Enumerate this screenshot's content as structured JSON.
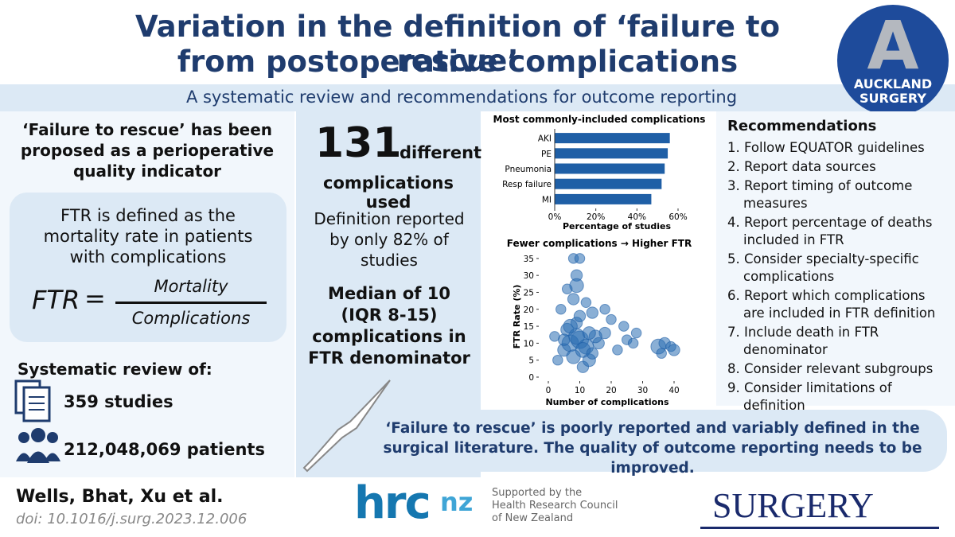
{
  "header": {
    "title_line1": "Variation in the definition of ‘failure to rescue’",
    "title_line2": "from postoperative complications",
    "subtitle": "A systematic review and recommendations for outcome reporting",
    "logo_letter": "A",
    "logo_line1": "AUCKLAND",
    "logo_line2": "SURGERY"
  },
  "left": {
    "heading": "‘Failure to rescue’ has been proposed as a perioperative quality indicator",
    "definition": "FTR is defined as the mortality rate in patients with complications",
    "formula_lhs": "FTR",
    "formula_eq": "=",
    "formula_numerator": "Mortality",
    "formula_denominator": "Complications",
    "review_heading": "Systematic review of:",
    "studies": "359 studies",
    "patients": "212,048,069 patients"
  },
  "middle": {
    "count": "131",
    "count_word": "different",
    "count_line2": "complications used",
    "definition_note": "Definition reported by only 82% of studies",
    "median": "Median of 10 (IQR 8-15) complications in FTR denominator"
  },
  "recommendations": {
    "heading": "Recommendations",
    "items": [
      "1. Follow EQUATOR guidelines",
      "2. Report data sources",
      "3. Report timing of outcome measures",
      "4. Report percentage of deaths included in FTR",
      "5. Consider specialty-specific complications",
      "6. Report which complications are included in FTR definition",
      "7. Include death in FTR denominator",
      "8. Consider relevant subgroups",
      "9. Consider limitations of definition"
    ]
  },
  "conclusion": "‘Failure to rescue’ is poorly reported and variably defined in the surgical literature. The quality of outcome reporting needs to be improved.",
  "footer": {
    "authors": "Wells, Bhat, Xu et al.",
    "doi": "doi: 10.1016/j.surg.2023.12.006",
    "hrc": "hrc",
    "nz": "nz",
    "support_line1": "Supported by the",
    "support_line2": "Health Research Council",
    "support_line3": "of New Zealand",
    "journal": "SURGERY"
  },
  "chart_data": [
    {
      "type": "bar",
      "orientation": "horizontal",
      "title": "Most commonly-included complications",
      "xlabel": "Percentage of studies",
      "categories": [
        "AKI",
        "PE",
        "Pneumonia",
        "Resp failure",
        "MI"
      ],
      "values": [
        56,
        55,
        53.5,
        52,
        47
      ],
      "color": "#1f5fa6",
      "xlim": [
        0,
        60
      ],
      "xticks": [
        {
          "value": 0,
          "label": "0%"
        },
        {
          "value": 20,
          "label": "20%"
        },
        {
          "value": 40,
          "label": "40%"
        },
        {
          "value": 60,
          "label": "60%"
        }
      ]
    },
    {
      "type": "scatter",
      "title": "Fewer complications → Higher FTR",
      "xlabel": "Number of complications",
      "ylabel": "FTR Rate (%)",
      "x": [
        8,
        10,
        9,
        9,
        8,
        12,
        14,
        20,
        24,
        25,
        27,
        35,
        37,
        39,
        40,
        36,
        3,
        2,
        18,
        22,
        16,
        6,
        5,
        7,
        10,
        12,
        8,
        11,
        13,
        9,
        15,
        4,
        6,
        10,
        18,
        28,
        9,
        11,
        7,
        13,
        5,
        14
      ],
      "y": [
        35,
        35,
        30,
        27,
        23,
        22,
        19,
        17,
        15,
        11,
        10,
        9,
        10,
        9,
        8,
        7,
        5,
        12,
        13,
        8,
        10,
        14,
        8,
        10,
        11,
        9,
        6,
        3,
        5,
        16,
        12,
        20,
        26,
        18,
        20,
        13,
        12,
        8,
        15,
        13,
        11,
        7
      ],
      "sizes": [
        2,
        2,
        3,
        5,
        3,
        2,
        3,
        2,
        2,
        2,
        2,
        6,
        3,
        2,
        3,
        2,
        2,
        2,
        3,
        2,
        3,
        4,
        4,
        8,
        9,
        6,
        5,
        3,
        4,
        3,
        4,
        2,
        2,
        3,
        2,
        2,
        7,
        6,
        5,
        4,
        3,
        3
      ],
      "color": "#2a6db3",
      "xlim": [
        -3,
        43
      ],
      "ylim": [
        -1,
        36
      ],
      "xticks": [
        0,
        10,
        20,
        30,
        40
      ],
      "yticks": [
        0,
        5,
        10,
        15,
        20,
        25,
        30,
        35
      ]
    }
  ]
}
